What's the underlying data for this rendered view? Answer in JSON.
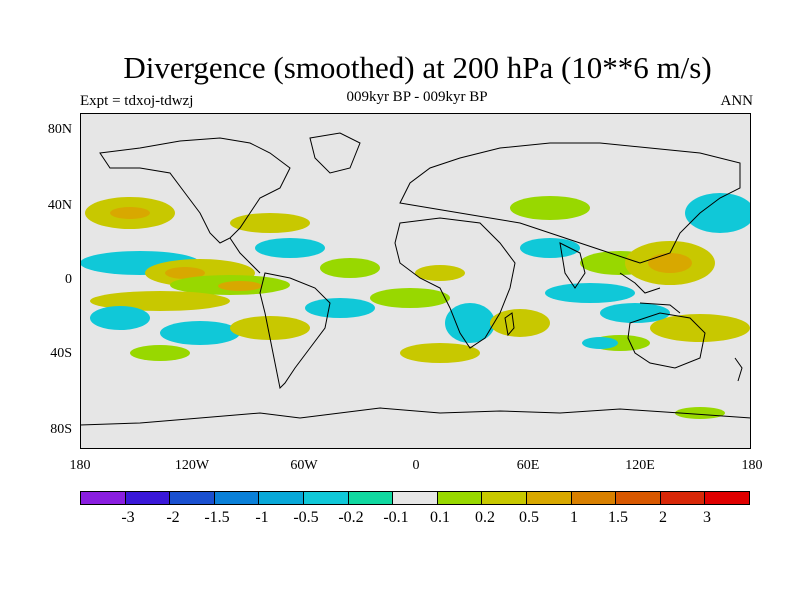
{
  "title": "Divergence (smoothed) at 200 hPa (10**6 m/s)",
  "subtitle": "009kyr BP - 009kyr BP",
  "expt_label": "Expt = tdxoj-tdwzj",
  "season": "ANN",
  "y_ticks": [
    "80N",
    "40N",
    "0",
    "40S",
    "80S"
  ],
  "x_ticks": [
    "180",
    "120W",
    "60W",
    "0",
    "60E",
    "120E",
    "180"
  ],
  "colorbar": {
    "labels": [
      "-3",
      "-2",
      "-1.5",
      "-1",
      "-0.5",
      "-0.2",
      "-0.1",
      "0.1",
      "0.2",
      "0.5",
      "1",
      "1.5",
      "2",
      "3"
    ],
    "colors": [
      "#8a1ee0",
      "#3a18d8",
      "#1a50d0",
      "#0a80d8",
      "#08a8d8",
      "#10c8d8",
      "#10d8a0",
      "#e6e6e6",
      "#98d800",
      "#c8c800",
      "#d8a800",
      "#d88000",
      "#d85800",
      "#d82808",
      "#e00000"
    ]
  },
  "chart_data": {
    "type": "heatmap",
    "field": "200 hPa divergence difference",
    "xlim": [
      -180,
      180
    ],
    "ylim": [
      -90,
      90
    ],
    "colors": {
      "background": "#e6e6e6",
      "neg_weak": "#10d8a0",
      "neg_mid": "#10c8d8",
      "pos_weak": "#98d800",
      "pos_mid": "#c8c800",
      "pos_strong": "#d8a800"
    }
  }
}
